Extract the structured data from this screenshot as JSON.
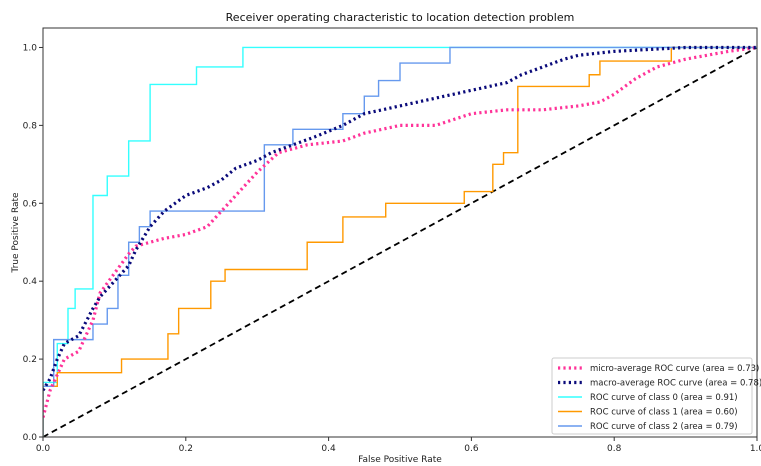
{
  "chart_data": {
    "type": "line",
    "title": "Receiver operating characteristic to location detection problem",
    "xlabel": "False Positive Rate",
    "ylabel": "True Positive Rate",
    "xlim": [
      0.0,
      1.0
    ],
    "ylim": [
      0.0,
      1.05
    ],
    "xticks": [
      0.0,
      0.2,
      0.4,
      0.6,
      0.8,
      1.0
    ],
    "xtick_labels": [
      "0.0",
      "0.2",
      "0.4",
      "0.6",
      "0.8",
      "1.0"
    ],
    "yticks": [
      0.0,
      0.2,
      0.4,
      0.6,
      0.8,
      1.0
    ],
    "ytick_labels": [
      "0.0",
      "0.2",
      "0.4",
      "0.6",
      "0.8",
      "1.0"
    ],
    "grid": false,
    "legend_position": "bottom-right",
    "series": [
      {
        "name": "micro-average ROC curve (area = 0.73)",
        "color": "#ff3399",
        "style": "dotted",
        "x": [
          0.0,
          0.01,
          0.02,
          0.03,
          0.05,
          0.07,
          0.08,
          0.1,
          0.12,
          0.13,
          0.15,
          0.17,
          0.2,
          0.23,
          0.25,
          0.27,
          0.3,
          0.33,
          0.37,
          0.42,
          0.45,
          0.5,
          0.55,
          0.6,
          0.65,
          0.7,
          0.75,
          0.78,
          0.8,
          0.83,
          0.86,
          0.9,
          0.93,
          0.96,
          1.0
        ],
        "y": [
          0.05,
          0.12,
          0.16,
          0.2,
          0.22,
          0.3,
          0.37,
          0.42,
          0.47,
          0.49,
          0.5,
          0.51,
          0.52,
          0.54,
          0.58,
          0.62,
          0.68,
          0.73,
          0.75,
          0.76,
          0.78,
          0.8,
          0.8,
          0.83,
          0.84,
          0.84,
          0.85,
          0.86,
          0.88,
          0.92,
          0.95,
          0.97,
          0.98,
          0.99,
          1.0
        ]
      },
      {
        "name": "macro-average ROC curve (area = 0.78)",
        "color": "#0a0a7a",
        "style": "dotted",
        "x": [
          0.0,
          0.01,
          0.02,
          0.03,
          0.05,
          0.07,
          0.08,
          0.1,
          0.12,
          0.13,
          0.15,
          0.17,
          0.2,
          0.23,
          0.25,
          0.27,
          0.3,
          0.32,
          0.35,
          0.38,
          0.42,
          0.45,
          0.5,
          0.55,
          0.6,
          0.65,
          0.67,
          0.7,
          0.73,
          0.75,
          0.8,
          0.85,
          0.9,
          0.95,
          1.0
        ],
        "y": [
          0.12,
          0.15,
          0.2,
          0.24,
          0.26,
          0.33,
          0.36,
          0.4,
          0.44,
          0.48,
          0.54,
          0.58,
          0.62,
          0.64,
          0.66,
          0.69,
          0.71,
          0.73,
          0.75,
          0.77,
          0.8,
          0.83,
          0.85,
          0.87,
          0.89,
          0.91,
          0.93,
          0.95,
          0.97,
          0.98,
          0.99,
          0.995,
          1.0,
          1.0,
          1.0
        ]
      },
      {
        "name": "ROC curve of class 0 (area = 0.91)",
        "color": "#33ffff",
        "style": "solid",
        "x": [
          0.0,
          0.0,
          0.02,
          0.02,
          0.035,
          0.035,
          0.045,
          0.045,
          0.055,
          0.055,
          0.07,
          0.07,
          0.09,
          0.09,
          0.12,
          0.12,
          0.135,
          0.135,
          0.15,
          0.15,
          0.175,
          0.175,
          0.215,
          0.215,
          0.28,
          0.28,
          1.0
        ],
        "y": [
          0.0,
          0.14,
          0.14,
          0.24,
          0.24,
          0.33,
          0.33,
          0.38,
          0.38,
          0.38,
          0.38,
          0.62,
          0.62,
          0.67,
          0.67,
          0.76,
          0.76,
          0.76,
          0.76,
          0.905,
          0.905,
          0.905,
          0.905,
          0.95,
          0.95,
          1.0,
          1.0
        ]
      },
      {
        "name": "ROC curve of class 1 (area = 0.60)",
        "color": "#ff9900",
        "style": "solid",
        "x": [
          0.0,
          0.0,
          0.02,
          0.02,
          0.11,
          0.11,
          0.175,
          0.175,
          0.19,
          0.19,
          0.235,
          0.235,
          0.255,
          0.255,
          0.37,
          0.37,
          0.42,
          0.42,
          0.48,
          0.48,
          0.59,
          0.59,
          0.63,
          0.63,
          0.645,
          0.645,
          0.665,
          0.665,
          0.765,
          0.765,
          0.78,
          0.78,
          0.88,
          0.88,
          1.0
        ],
        "y": [
          0.0,
          0.13,
          0.13,
          0.165,
          0.165,
          0.2,
          0.2,
          0.265,
          0.265,
          0.33,
          0.33,
          0.4,
          0.4,
          0.43,
          0.43,
          0.5,
          0.5,
          0.565,
          0.565,
          0.6,
          0.6,
          0.63,
          0.63,
          0.7,
          0.7,
          0.73,
          0.73,
          0.9,
          0.9,
          0.93,
          0.93,
          0.965,
          0.965,
          1.0,
          1.0
        ]
      },
      {
        "name": "ROC curve of class 2 (area = 0.79)",
        "color": "#6699ee",
        "style": "solid",
        "x": [
          0.0,
          0.0,
          0.015,
          0.015,
          0.025,
          0.025,
          0.04,
          0.04,
          0.07,
          0.07,
          0.09,
          0.09,
          0.105,
          0.105,
          0.12,
          0.12,
          0.135,
          0.135,
          0.15,
          0.15,
          0.17,
          0.17,
          0.31,
          0.31,
          0.35,
          0.35,
          0.38,
          0.38,
          0.42,
          0.42,
          0.45,
          0.45,
          0.47,
          0.47,
          0.5,
          0.5,
          0.57,
          0.57,
          1.0
        ],
        "y": [
          0.0,
          0.13,
          0.13,
          0.25,
          0.25,
          0.25,
          0.25,
          0.25,
          0.25,
          0.29,
          0.29,
          0.33,
          0.33,
          0.415,
          0.415,
          0.5,
          0.5,
          0.54,
          0.54,
          0.58,
          0.58,
          0.58,
          0.58,
          0.75,
          0.75,
          0.79,
          0.79,
          0.79,
          0.79,
          0.83,
          0.83,
          0.875,
          0.875,
          0.915,
          0.915,
          0.96,
          0.96,
          1.0,
          1.0
        ]
      }
    ],
    "reference_line": {
      "x": [
        0.0,
        1.0
      ],
      "y": [
        0.0,
        1.0
      ],
      "color": "#000000",
      "style": "dashed"
    }
  }
}
